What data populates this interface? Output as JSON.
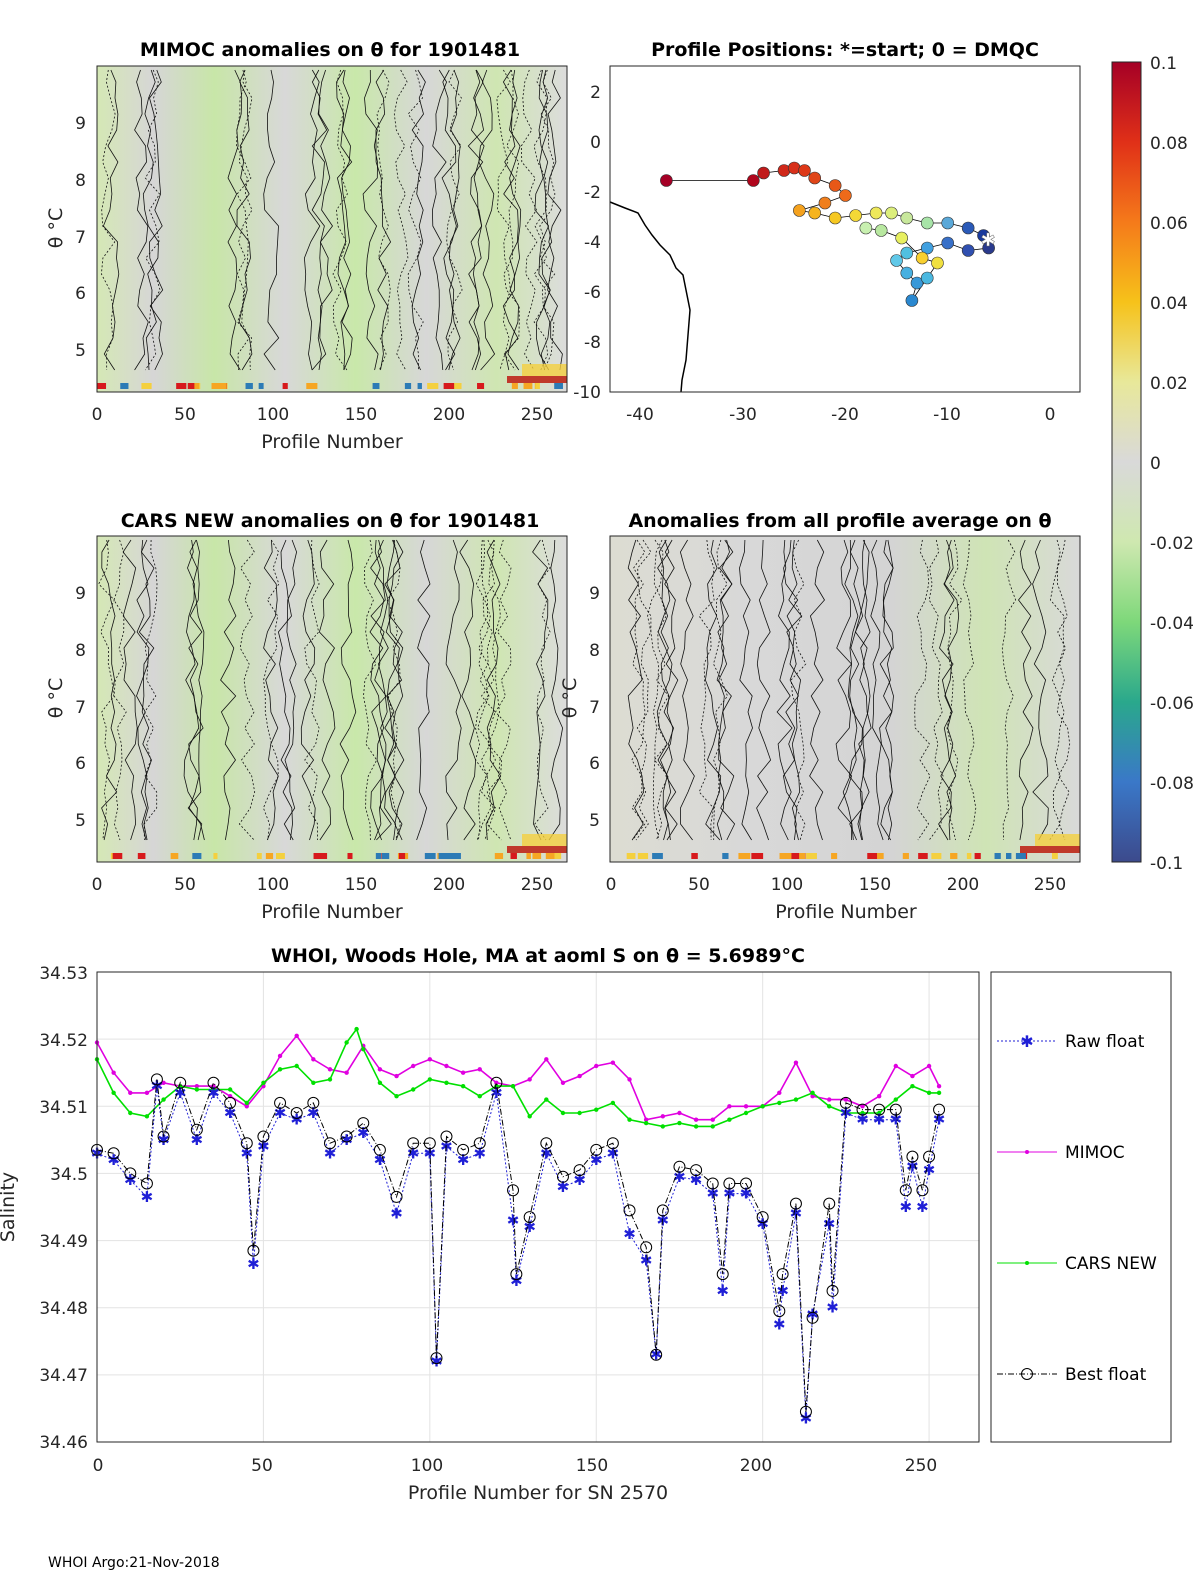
{
  "panels": {
    "mimoc": {
      "title": "MIMOC anomalies on θ  for 1901481",
      "xlabel": "Profile Number",
      "ylabel": "θ °C",
      "xticks": [
        "0",
        "50",
        "100",
        "150",
        "200",
        "250"
      ],
      "yticks": [
        "5",
        "6",
        "7",
        "8",
        "9"
      ]
    },
    "positions": {
      "title": "Profile Positions: *=start; 0 = DMQC",
      "xticks": [
        "-40",
        "-30",
        "-20",
        "-10",
        "0"
      ],
      "yticks": [
        "2",
        "0",
        "-2",
        "-4",
        "-6",
        "-8",
        "-10"
      ]
    },
    "cars": {
      "title": "CARS NEW anomalies on θ for 1901481",
      "xlabel": "Profile Number",
      "ylabel": "θ °C",
      "xticks": [
        "0",
        "50",
        "100",
        "150",
        "200",
        "250"
      ],
      "yticks": [
        "5",
        "6",
        "7",
        "8",
        "9"
      ]
    },
    "average": {
      "title": "Anomalies from all profile average on θ",
      "xlabel": "Profile Number",
      "ylabel": "θ °C",
      "xticks": [
        "0",
        "50",
        "100",
        "150",
        "200",
        "250"
      ],
      "yticks": [
        "5",
        "6",
        "7",
        "8",
        "9"
      ]
    },
    "colorbar": {
      "ticks": [
        "0.1",
        "0.08",
        "0.06",
        "0.04",
        "0.02",
        "0",
        "-0.02",
        "-0.04",
        "-0.06",
        "-0.08",
        "-0.1"
      ]
    }
  },
  "colors": {
    "raw": "#1f1fd6",
    "mimoc": "#e000e0",
    "cars": "#00e000",
    "best": "#000000"
  },
  "chart_data": {
    "type": "line",
    "title": "WHOI, Woods Hole, MA at aoml S on θ = 5.6989°C",
    "xlabel": "Profile Number for SN 2570",
    "ylabel": "Salinity",
    "xlim": [
      0,
      265
    ],
    "ylim": [
      34.46,
      34.53
    ],
    "xticks": [
      "0",
      "50",
      "100",
      "150",
      "200",
      "250"
    ],
    "yticks": [
      "34.46",
      "34.47",
      "34.48",
      "34.49",
      "34.5",
      "34.51",
      "34.52",
      "34.53"
    ],
    "grid": true,
    "legend_position": "right",
    "series": [
      {
        "name": "Raw float",
        "x": [
          0,
          5,
          10,
          15,
          18,
          20,
          25,
          30,
          35,
          40,
          45,
          47,
          50,
          55,
          60,
          65,
          70,
          75,
          80,
          85,
          90,
          95,
          100,
          102,
          105,
          110,
          115,
          120,
          125,
          126,
          130,
          135,
          140,
          145,
          150,
          155,
          160,
          165,
          168,
          170,
          175,
          180,
          185,
          188,
          190,
          195,
          200,
          205,
          206,
          210,
          213,
          215,
          220,
          221,
          225,
          230,
          235,
          240,
          243,
          245,
          248,
          250,
          253
        ],
        "values": [
          34.503,
          34.502,
          34.499,
          34.4965,
          34.513,
          34.505,
          34.512,
          34.505,
          34.512,
          34.509,
          34.503,
          34.4865,
          34.504,
          34.509,
          34.508,
          34.509,
          34.503,
          34.505,
          34.506,
          34.502,
          34.494,
          34.503,
          34.503,
          34.472,
          34.504,
          34.502,
          34.503,
          34.512,
          34.493,
          34.484,
          34.492,
          34.503,
          34.498,
          34.499,
          34.502,
          34.503,
          34.491,
          34.487,
          34.473,
          34.493,
          34.4995,
          34.499,
          34.497,
          34.4825,
          34.497,
          34.497,
          34.4925,
          34.4775,
          34.4825,
          34.494,
          34.4635,
          34.479,
          34.4925,
          34.48,
          34.509,
          34.508,
          34.508,
          34.508,
          34.495,
          34.501,
          34.495,
          34.5005,
          34.508
        ]
      },
      {
        "name": "MIMOC",
        "x": [
          0,
          5,
          10,
          15,
          20,
          25,
          30,
          35,
          40,
          45,
          50,
          55,
          60,
          65,
          70,
          75,
          80,
          85,
          90,
          95,
          100,
          105,
          110,
          115,
          120,
          125,
          130,
          135,
          140,
          145,
          150,
          155,
          160,
          165,
          170,
          175,
          180,
          185,
          190,
          195,
          200,
          205,
          210,
          215,
          220,
          225,
          230,
          235,
          240,
          245,
          250,
          253
        ],
        "values": [
          34.5195,
          34.515,
          34.512,
          34.512,
          34.5135,
          34.513,
          34.513,
          34.513,
          34.5115,
          34.51,
          34.513,
          34.5175,
          34.5205,
          34.517,
          34.5155,
          34.515,
          34.519,
          34.5155,
          34.5145,
          34.516,
          34.517,
          34.516,
          34.515,
          34.5155,
          34.5135,
          34.513,
          34.514,
          34.517,
          34.5135,
          34.5145,
          34.516,
          34.5165,
          34.514,
          34.508,
          34.5085,
          34.509,
          34.508,
          34.508,
          34.51,
          34.51,
          34.51,
          34.512,
          34.5165,
          34.5115,
          34.511,
          34.511,
          34.51,
          34.5115,
          34.516,
          34.5145,
          34.516,
          34.513
        ]
      },
      {
        "name": "CARS NEW",
        "x": [
          0,
          5,
          10,
          15,
          20,
          25,
          30,
          35,
          40,
          45,
          50,
          55,
          60,
          65,
          70,
          75,
          78,
          80,
          85,
          90,
          95,
          100,
          105,
          110,
          115,
          120,
          125,
          130,
          135,
          140,
          145,
          150,
          155,
          160,
          165,
          170,
          175,
          180,
          185,
          190,
          195,
          200,
          205,
          210,
          215,
          220,
          225,
          230,
          235,
          240,
          245,
          250,
          253
        ],
        "values": [
          34.517,
          34.512,
          34.509,
          34.5085,
          34.511,
          34.513,
          34.5125,
          34.5125,
          34.5125,
          34.5105,
          34.5135,
          34.5155,
          34.516,
          34.5135,
          34.514,
          34.5195,
          34.5215,
          34.5185,
          34.5135,
          34.5115,
          34.5125,
          34.514,
          34.5135,
          34.513,
          34.5115,
          34.513,
          34.513,
          34.5085,
          34.511,
          34.509,
          34.509,
          34.5095,
          34.5105,
          34.508,
          34.5075,
          34.507,
          34.5075,
          34.507,
          34.507,
          34.508,
          34.509,
          34.51,
          34.5105,
          34.511,
          34.512,
          34.51,
          34.509,
          34.509,
          34.509,
          34.511,
          34.513,
          34.512,
          34.512
        ]
      },
      {
        "name": "Best float",
        "x": [
          0,
          5,
          10,
          15,
          18,
          20,
          25,
          30,
          35,
          40,
          45,
          47,
          50,
          55,
          60,
          65,
          70,
          75,
          80,
          85,
          90,
          95,
          100,
          102,
          105,
          110,
          115,
          120,
          125,
          126,
          130,
          135,
          140,
          145,
          150,
          155,
          160,
          165,
          168,
          170,
          175,
          180,
          185,
          188,
          190,
          195,
          200,
          205,
          206,
          210,
          213,
          215,
          220,
          221,
          225,
          230,
          235,
          240,
          243,
          245,
          248,
          250,
          253
        ],
        "values": [
          34.5035,
          34.503,
          34.5,
          34.4985,
          34.514,
          34.5055,
          34.5135,
          34.5065,
          34.5135,
          34.5105,
          34.5045,
          34.4885,
          34.5055,
          34.5105,
          34.509,
          34.5105,
          34.5045,
          34.5055,
          34.5075,
          34.5035,
          34.4965,
          34.5045,
          34.5045,
          34.4725,
          34.5055,
          34.5035,
          34.5045,
          34.5135,
          34.4975,
          34.485,
          34.4935,
          34.5045,
          34.4995,
          34.5005,
          34.5035,
          34.5045,
          34.4945,
          34.489,
          34.473,
          34.4945,
          34.501,
          34.5005,
          34.4985,
          34.485,
          34.4985,
          34.4985,
          34.4935,
          34.4795,
          34.485,
          34.4955,
          34.4645,
          34.4785,
          34.4955,
          34.4825,
          34.5105,
          34.5095,
          34.5095,
          34.5095,
          34.4975,
          34.5025,
          34.4975,
          34.5025,
          34.5095
        ]
      }
    ]
  },
  "footer": {
    "text": "WHOI Argo:21-Nov-2018"
  }
}
